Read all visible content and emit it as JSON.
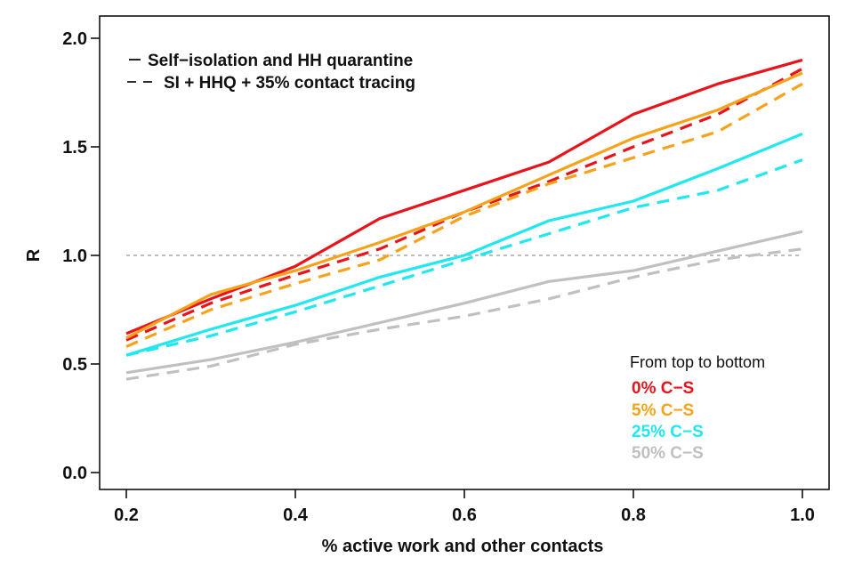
{
  "chart_data": {
    "type": "line",
    "xlabel": "% active work and other contacts",
    "ylabel": "R",
    "xlim": [
      0.2,
      1.0
    ],
    "ylim": [
      0.0,
      2.0
    ],
    "x_ticks": [
      "0.2",
      "0.4",
      "0.6",
      "0.8",
      "1.0"
    ],
    "y_ticks": [
      "0.0",
      "0.5",
      "1.0",
      "1.5",
      "2.0"
    ],
    "reference_line": {
      "y": 1.0,
      "style": "dashed",
      "color": "#a8a8a8"
    },
    "line_legend": {
      "placement": "top-left",
      "entries": [
        {
          "style": "solid",
          "label": "Self−isolation and HH quarantine"
        },
        {
          "style": "dashed",
          "label": "SI + HHQ + 35% contact tracing"
        }
      ]
    },
    "color_legend": {
      "placement": "bottom-right",
      "title": "From top to bottom",
      "entries": [
        {
          "label": "0% C−S",
          "color": "#e8141c"
        },
        {
          "label": "5% C−S",
          "color": "#f7a21b"
        },
        {
          "label": "25% C−S",
          "color": "#20e7f0"
        },
        {
          "label": "50% C−S",
          "color": "#c0c0c0"
        }
      ]
    },
    "x": [
      0.2,
      0.3,
      0.4,
      0.5,
      0.6,
      0.7,
      0.8,
      0.9,
      1.0
    ],
    "series": [
      {
        "group": "0% C−S",
        "style": "solid",
        "color": "#e8141c",
        "values": [
          0.64,
          0.8,
          0.95,
          1.17,
          1.3,
          1.43,
          1.65,
          1.79,
          1.9
        ]
      },
      {
        "group": "0% C−S",
        "style": "dashed",
        "color": "#e8141c",
        "values": [
          0.61,
          0.78,
          0.91,
          1.03,
          1.2,
          1.34,
          1.5,
          1.65,
          1.86
        ]
      },
      {
        "group": "5% C−S",
        "style": "solid",
        "color": "#f7a21b",
        "values": [
          0.62,
          0.82,
          0.93,
          1.06,
          1.2,
          1.37,
          1.54,
          1.67,
          1.84
        ]
      },
      {
        "group": "5% C−S",
        "style": "dashed",
        "color": "#f7a21b",
        "values": [
          0.58,
          0.75,
          0.87,
          0.98,
          1.18,
          1.33,
          1.45,
          1.57,
          1.79
        ]
      },
      {
        "group": "25% C−S",
        "style": "solid",
        "color": "#20e7f0",
        "values": [
          0.54,
          0.66,
          0.77,
          0.9,
          1.0,
          1.16,
          1.25,
          1.4,
          1.56
        ]
      },
      {
        "group": "25% C−S",
        "style": "dashed",
        "color": "#20e7f0",
        "values": [
          0.54,
          0.63,
          0.74,
          0.86,
          0.98,
          1.1,
          1.22,
          1.3,
          1.44
        ]
      },
      {
        "group": "50% C−S",
        "style": "solid",
        "color": "#c0c0c0",
        "values": [
          0.46,
          0.52,
          0.6,
          0.69,
          0.78,
          0.88,
          0.93,
          1.02,
          1.11
        ]
      },
      {
        "group": "50% C−S",
        "style": "dashed",
        "color": "#c0c0c0",
        "values": [
          0.43,
          0.49,
          0.59,
          0.66,
          0.72,
          0.8,
          0.9,
          0.98,
          1.03
        ]
      }
    ]
  }
}
